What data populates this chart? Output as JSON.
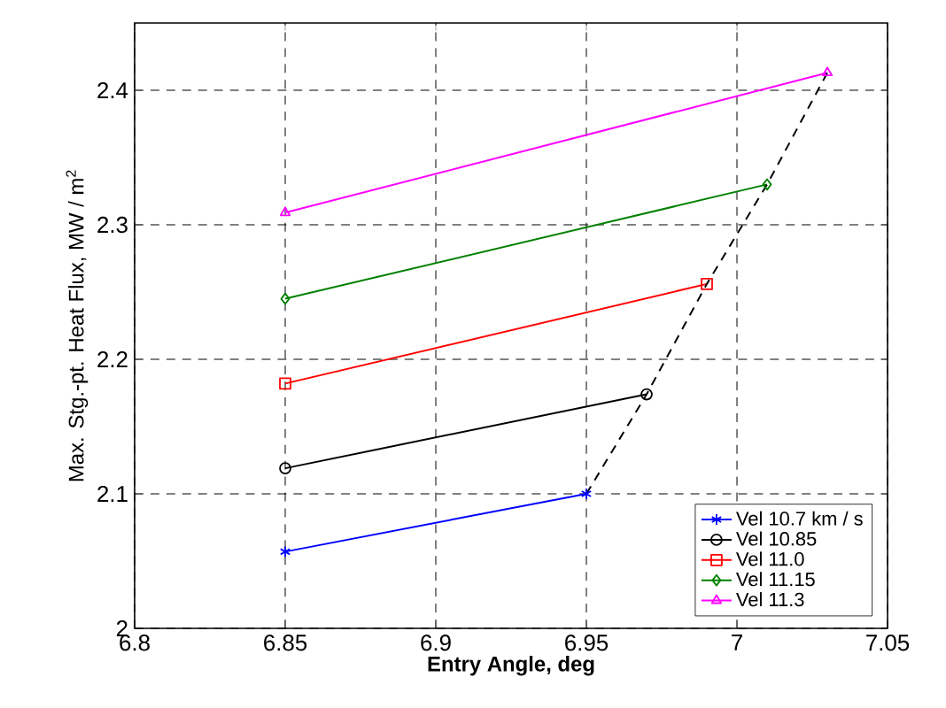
{
  "chart_data": {
    "type": "line",
    "xlabel": "**Entry Angle,  deg**",
    "ylabel": "Max. Stg.-pt. Heat Flux,  MW / m$^{2}$",
    "xlim": [
      6.8,
      7.05
    ],
    "xticks": [
      6.8,
      6.85,
      6.9,
      6.95,
      7,
      7.05
    ],
    "ylim": [
      2,
      2.45
    ],
    "yticks": [
      2,
      2.1,
      2.2,
      2.3,
      2.4
    ],
    "grid": true,
    "legend": "bottom right",
    "line_style": "solid",
    "series": [
      {
        "name": "Vel 10.7 km / s",
        "color": "#0000ff",
        "marker": "cross",
        "x": [
          6.85,
          6.95
        ],
        "values": [
          2.057,
          2.1
        ]
      },
      {
        "name": "Vel 10.85",
        "color": "#000000",
        "marker": "circle",
        "x": [
          6.85,
          6.97
        ],
        "values": [
          2.119,
          2.174
        ]
      },
      {
        "name": "Vel 11.0",
        "color": "#ff0000",
        "marker": "square",
        "x": [
          6.85,
          6.99
        ],
        "values": [
          2.182,
          2.256
        ]
      },
      {
        "name": "Vel 11.15",
        "color": "#008000",
        "marker": "diamond",
        "x": [
          6.85,
          7.01
        ],
        "values": [
          2.245,
          2.33
        ]
      },
      {
        "name": "Vel 11.3",
        "color": "#ff00ff",
        "marker": "triangle",
        "x": [
          6.85,
          7.03
        ],
        "values": [
          2.309,
          2.413
        ]
      },
      {
        "color": "#000000",
        "marker": "none",
        "line_style": "dashed",
        "x": [
          6.95,
          6.97,
          6.99,
          7.01,
          7.03
        ],
        "values": [
          2.1,
          2.174,
          2.256,
          2.33,
          2.413
        ]
      }
    ]
  }
}
